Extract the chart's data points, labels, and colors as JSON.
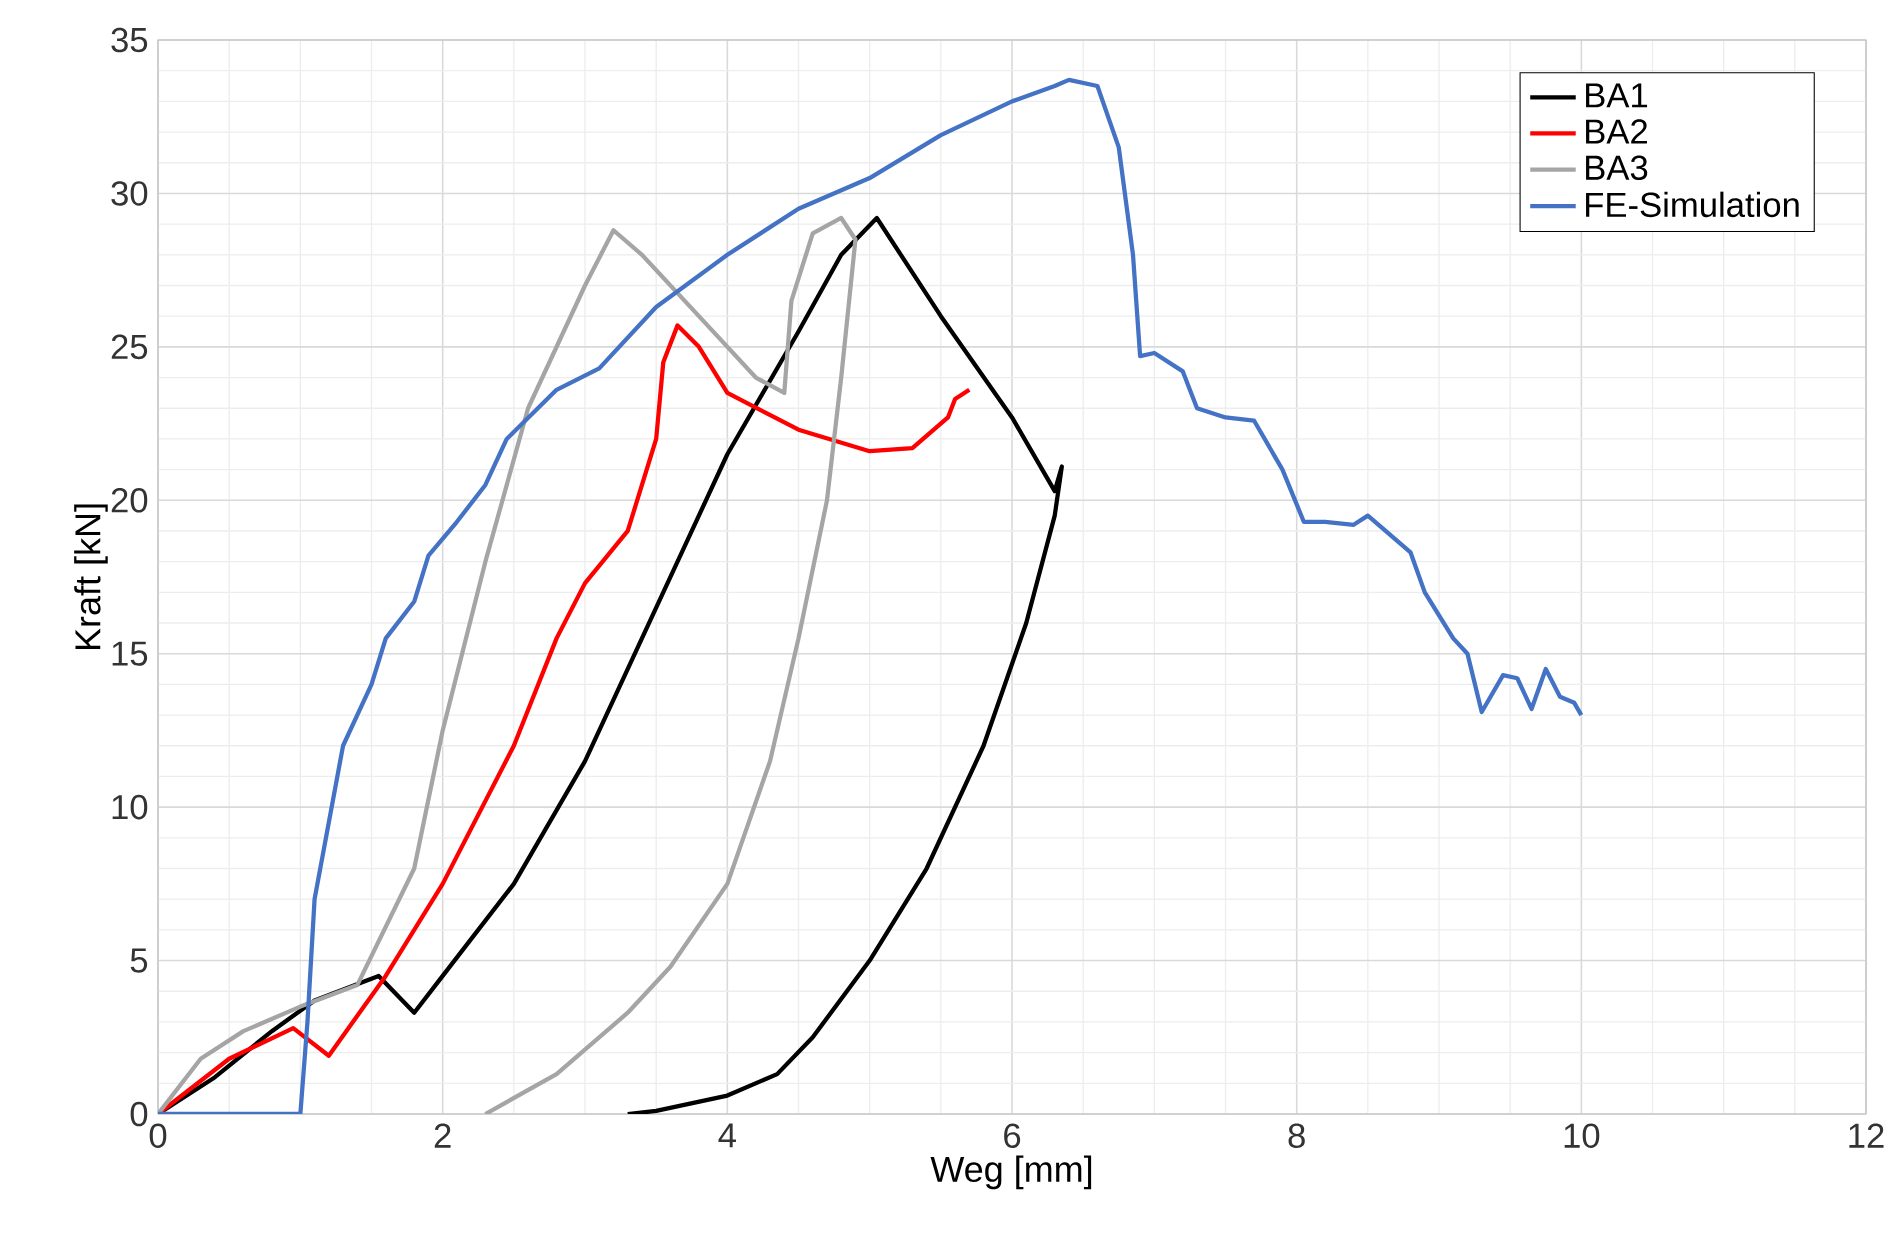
{
  "chart_data": {
    "type": "line",
    "xlabel": "Weg [mm]",
    "ylabel": "Kraft [kN]",
    "xlim": [
      0,
      12
    ],
    "ylim": [
      0,
      35
    ],
    "xticks": [
      0,
      2,
      4,
      6,
      8,
      10,
      12
    ],
    "yticks": [
      0,
      5,
      10,
      15,
      20,
      25,
      30,
      35
    ],
    "grid": true,
    "legend": "top right",
    "marker": "none",
    "line_style": "solid",
    "series": [
      {
        "name": "BA1",
        "color": "#000000",
        "x": [
          0,
          0.4,
          0.8,
          1.1,
          1.55,
          1.8,
          2,
          2.5,
          3,
          3.5,
          4,
          4.5,
          4.8,
          5.05,
          5.5,
          6,
          6.3,
          6.35,
          6.3,
          6.1,
          5.8,
          5.4,
          5,
          4.6,
          4.35,
          4,
          3.5,
          3.3
        ],
        "values": [
          0,
          1.2,
          2.7,
          3.7,
          4.5,
          3.3,
          4.5,
          7.5,
          11.5,
          16.5,
          21.5,
          25.5,
          28,
          29.2,
          26,
          22.7,
          20.3,
          21.1,
          19.5,
          16,
          12,
          8,
          5,
          2.5,
          1.3,
          0.6,
          0.1,
          0
        ]
      },
      {
        "name": "BA2",
        "color": "#ff0000",
        "x": [
          0,
          0.5,
          0.95,
          1.2,
          1.6,
          2,
          2.5,
          2.8,
          3,
          3.3,
          3.5,
          3.55,
          3.65,
          3.8,
          4,
          4.5,
          5,
          5.3,
          5.55,
          5.6,
          5.7
        ],
        "values": [
          0,
          1.8,
          2.8,
          1.9,
          4.5,
          7.5,
          12,
          15.5,
          17.3,
          19,
          22,
          24.5,
          25.7,
          25,
          23.5,
          22.3,
          21.6,
          21.7,
          22.7,
          23.3,
          23.6
        ]
      },
      {
        "name": "BA3",
        "color": "#a5a5a5",
        "x": [
          0,
          0.3,
          0.6,
          1,
          1.4,
          1.8,
          2,
          2.3,
          2.6,
          3,
          3.2,
          3.4,
          3.8,
          4.2,
          4.4,
          4.45,
          4.6,
          4.8,
          4.9,
          4.8,
          4.7,
          4.5,
          4.3,
          4,
          3.6,
          3.3,
          2.8,
          2.3
        ],
        "values": [
          0,
          1.8,
          2.7,
          3.5,
          4.2,
          8,
          12.5,
          18,
          23,
          27,
          28.8,
          28,
          26,
          24,
          23.5,
          26.5,
          28.7,
          29.2,
          28.5,
          24,
          20,
          15.5,
          11.5,
          7.5,
          4.8,
          3.3,
          1.3,
          0
        ]
      },
      {
        "name": "FE-Simulation",
        "color": "#4472c4",
        "x": [
          0,
          1,
          1.05,
          1.1,
          1.3,
          1.5,
          1.6,
          1.8,
          1.9,
          2.1,
          2.3,
          2.45,
          2.8,
          3.1,
          3.5,
          4,
          4.5,
          5,
          5.5,
          6,
          6.3,
          6.4,
          6.6,
          6.75,
          6.85,
          6.9,
          7,
          7.2,
          7.3,
          7.5,
          7.7,
          7.9,
          8.05,
          8.2,
          8.4,
          8.5,
          8.8,
          8.9,
          9.1,
          9.2,
          9.3,
          9.45,
          9.55,
          9.65,
          9.75,
          9.85,
          9.95,
          10
        ],
        "values": [
          0,
          0,
          3,
          7,
          12,
          14,
          15.5,
          16.7,
          18.2,
          19.3,
          20.5,
          22,
          23.6,
          24.3,
          26.3,
          28,
          29.5,
          30.5,
          31.9,
          33,
          33.5,
          33.7,
          33.5,
          31.5,
          28,
          24.7,
          24.8,
          24.2,
          23,
          22.7,
          22.6,
          21,
          19.3,
          19.3,
          19.2,
          19.5,
          18.3,
          17,
          15.5,
          15,
          13.1,
          14.3,
          14.2,
          13.2,
          14.5,
          13.6,
          13.4,
          13
        ]
      }
    ]
  }
}
